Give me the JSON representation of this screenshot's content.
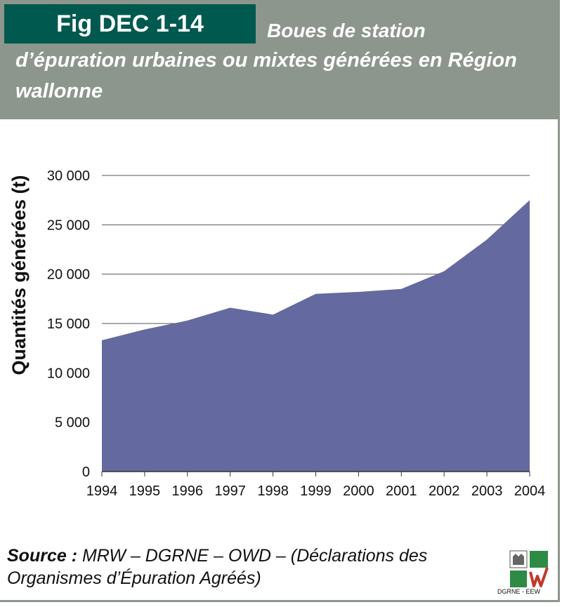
{
  "header": {
    "fig_prefix": "Fig",
    "fig_number": "DEC 1-14",
    "title_line1": "Boues de station",
    "title_line2": "d’épuration urbaines ou mixtes générées en Région",
    "title_line3": "wallonne"
  },
  "colors": {
    "header_bg": "#8d968d",
    "tag_bg": "#00594f",
    "area_fill": "#646a9f",
    "logo_green": "#2e8b45"
  },
  "chart_data": {
    "type": "area",
    "title": "Boues de station d’épuration urbaines ou mixtes générées en Région wallonne",
    "xlabel": "",
    "ylabel": "Quantités générées (t)",
    "x": [
      "1994",
      "1995",
      "1996",
      "1997",
      "1998",
      "1999",
      "2000",
      "2001",
      "2002",
      "2003",
      "2004"
    ],
    "values": [
      13300,
      14400,
      15300,
      16600,
      15900,
      18000,
      18200,
      18500,
      20300,
      23500,
      27500
    ],
    "ylim": [
      0,
      30000
    ],
    "yticks": [
      0,
      5000,
      10000,
      15000,
      20000,
      25000,
      30000
    ],
    "ytick_labels": [
      "0",
      "5 000",
      "10 000",
      "15 000",
      "20 000",
      "25 000",
      "30 000"
    ],
    "grid": true
  },
  "source": {
    "label": "Source :",
    "text": " MRW – DGRNE – OWD – (Déclarations des Organismes d’Épuration Agréés)"
  },
  "logo": {
    "caption": "DGRNE - EEW",
    "icon": "dgrne-eew-logo"
  }
}
